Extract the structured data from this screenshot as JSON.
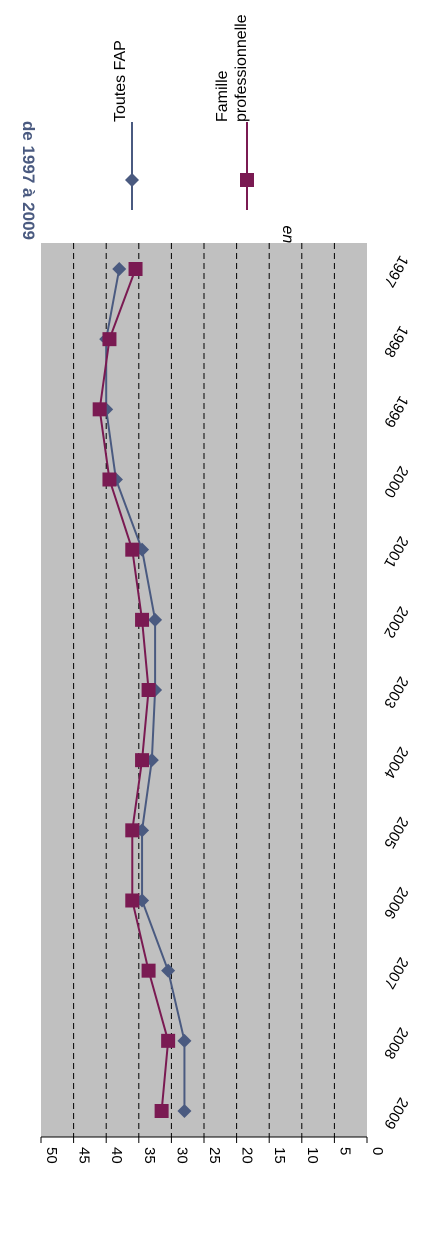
{
  "chart_data": {
    "type": "line",
    "title": "de 1997 à 2009",
    "unit_note": "en %",
    "x": [
      "1997",
      "1998",
      "1999",
      "2000",
      "2001",
      "2002",
      "2003",
      "2004",
      "2005",
      "2006",
      "2007",
      "2008",
      "2009"
    ],
    "ylim": [
      0,
      50
    ],
    "yticks": [
      0,
      5,
      10,
      15,
      20,
      25,
      30,
      35,
      40,
      45,
      50
    ],
    "grid": true,
    "legend_position": "right",
    "background_color": "#C0C0C0",
    "series": [
      {
        "name": "Toutes FAP",
        "color": "#4A5A80",
        "marker": "diamond",
        "values": [
          38,
          40,
          40,
          38.5,
          34.5,
          32.5,
          32.5,
          33,
          34.5,
          34.5,
          30.5,
          28,
          28
        ]
      },
      {
        "name": "Famille professionnelle",
        "color": "#7A1A52",
        "marker": "square",
        "values": [
          35.5,
          39.5,
          41,
          39.5,
          36,
          34.5,
          33.5,
          34.5,
          36,
          36,
          33.5,
          30.5,
          31.5
        ]
      }
    ]
  },
  "colors": {
    "title": "#4A5A80",
    "grid": "#000000",
    "plot_bg": "#C0C0C0"
  }
}
